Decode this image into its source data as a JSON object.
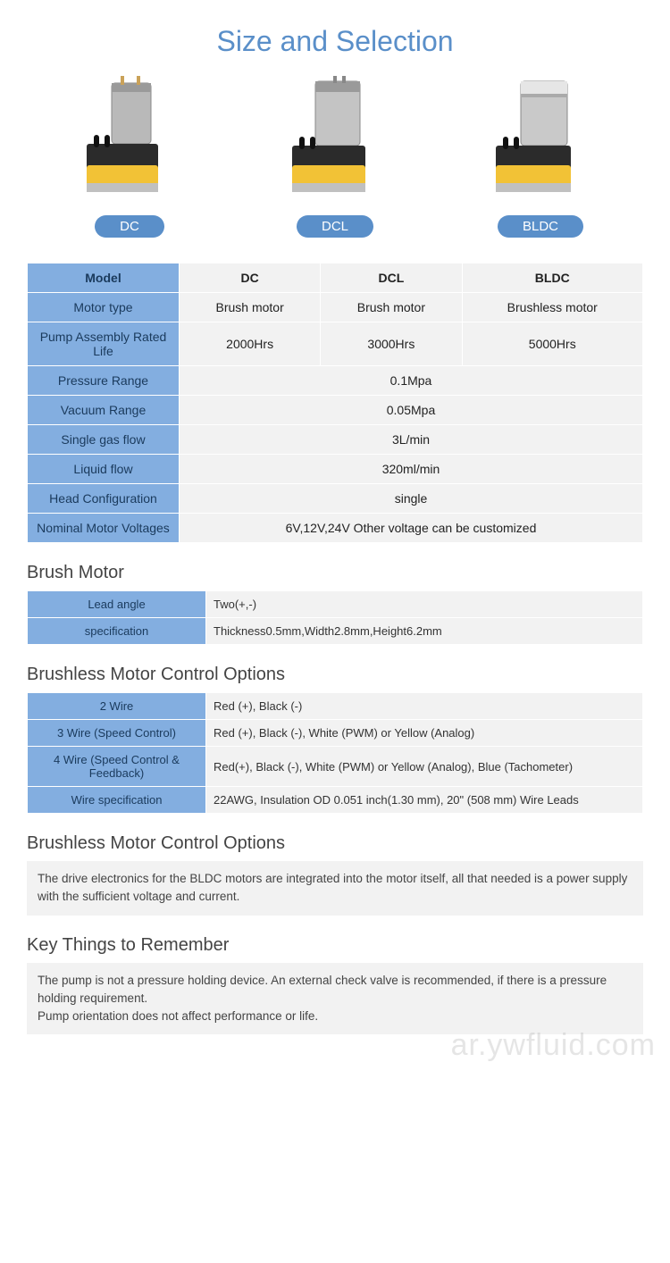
{
  "title": "Size and Selection",
  "products": [
    {
      "label": "DC"
    },
    {
      "label": "DCL"
    },
    {
      "label": "BLDC"
    }
  ],
  "spec_table": {
    "header": {
      "label": "Model",
      "cols": [
        "DC",
        "DCL",
        "BLDC"
      ]
    },
    "rows": [
      {
        "label": "Motor type",
        "cells": [
          "Brush motor",
          "Brush motor",
          "Brushless motor"
        ],
        "merged": false
      },
      {
        "label": "Pump Assembly Rated Life",
        "cells": [
          "2000Hrs",
          "3000Hrs",
          "5000Hrs"
        ],
        "merged": false
      },
      {
        "label": "Pressure Range",
        "cells": [
          "0.1Mpa"
        ],
        "merged": true
      },
      {
        "label": "Vacuum Range",
        "cells": [
          "0.05Mpa"
        ],
        "merged": true
      },
      {
        "label": "Single gas flow",
        "cells": [
          "3L/min"
        ],
        "merged": true
      },
      {
        "label": "Liquid flow",
        "cells": [
          "320ml/min"
        ],
        "merged": true
      },
      {
        "label": "Head Configuration",
        "cells": [
          "single"
        ],
        "merged": true
      },
      {
        "label": "Nominal Motor Voltages",
        "cells": [
          "6V,12V,24V Other voltage can be customized"
        ],
        "merged": true
      }
    ]
  },
  "brush_motor": {
    "heading": "Brush Motor",
    "rows": [
      {
        "label": "Lead angle",
        "value": "Two(+,-)"
      },
      {
        "label": "specification",
        "value": "Thickness0.5mm,Width2.8mm,Height6.2mm"
      }
    ]
  },
  "brushless_options": {
    "heading": "Brushless Motor Control Options",
    "rows": [
      {
        "label": "2 Wire",
        "value": "Red (+), Black (-)"
      },
      {
        "label": "3 Wire (Speed Control)",
        "value": "Red (+), Black (-), White (PWM) or Yellow (Analog)"
      },
      {
        "label": "4 Wire (Speed Control & Feedback)",
        "value": "Red(+), Black (-), White (PWM) or Yellow (Analog), Blue (Tachometer)"
      },
      {
        "label": "Wire specification",
        "value": "22AWG, Insulation OD 0.051 inch(1.30 mm), 20\" (508 mm) Wire Leads"
      }
    ]
  },
  "brushless_note": {
    "heading": "Brushless Motor Control Options",
    "text": "The drive electronics for the BLDC motors are integrated into the motor itself, all that needed is a power supply with the sufficient voltage and current."
  },
  "key_things": {
    "heading": "Key Things to Remember",
    "text": "The pump is not a pressure holding device. An external check valve is recommended, if there is a pressure holding requirement.\nPump orientation does not affect performance or life."
  },
  "watermark": "ar.ywfluid.com",
  "colors": {
    "accent": "#5a8fc9",
    "header_cell": "#83aee0",
    "value_cell": "#f2f2f2"
  }
}
